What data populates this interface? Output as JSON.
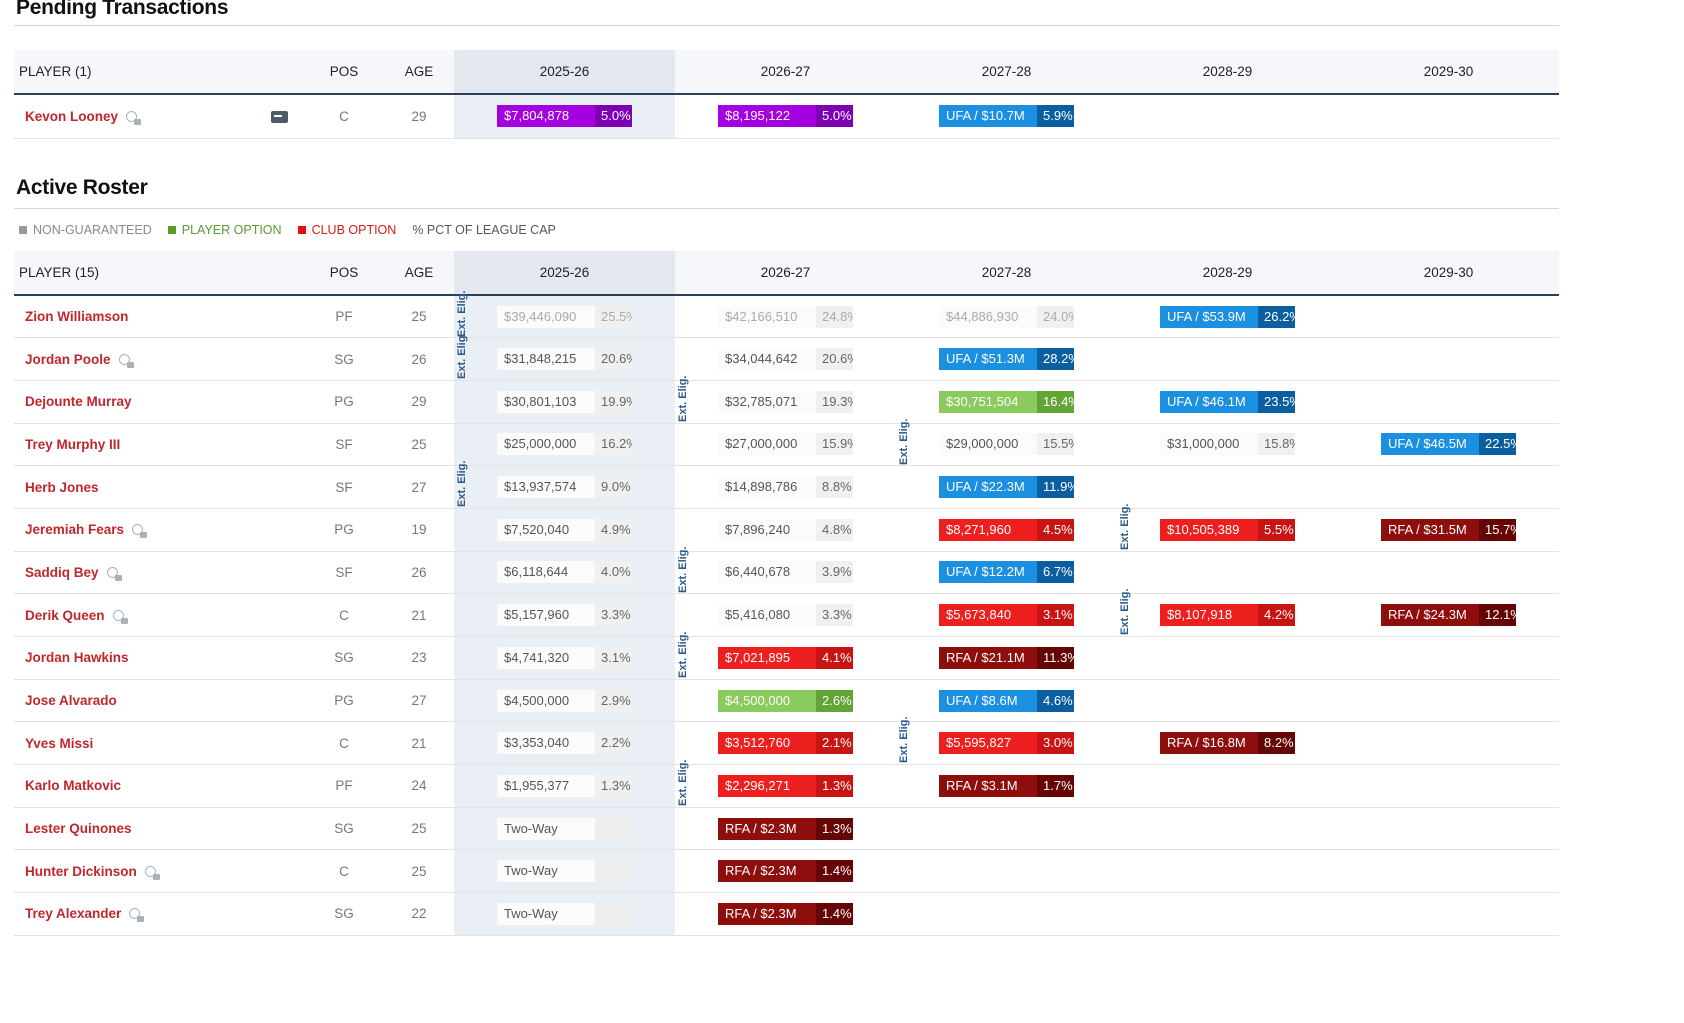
{
  "pending": {
    "title": "Pending Transactions",
    "headers": {
      "player": "PLAYER (1)",
      "pos": "POS",
      "age": "AGE",
      "years": [
        "2025-26",
        "2026-27",
        "2027-28",
        "2028-29",
        "2029-30"
      ]
    },
    "rows": [
      {
        "name": "Kevon Looney",
        "pos": "C",
        "age": "29",
        "y1": {
          "amt": "$7,804,878",
          "pct": "5.0%"
        },
        "y2": {
          "amt": "$8,195,122",
          "pct": "5.0%"
        },
        "y3": {
          "amt": "UFA / $10.7M",
          "pct": "5.9%"
        }
      }
    ]
  },
  "roster": {
    "title": "Active Roster",
    "legend": {
      "non_guaranteed": "NON-GUARANTEED",
      "player_option": "PLAYER OPTION",
      "club_option": "CLUB OPTION",
      "pct_cap": "% PCT OF LEAGUE CAP"
    },
    "headers": {
      "player": "PLAYER (15)",
      "pos": "POS",
      "age": "AGE",
      "years": [
        "2025-26",
        "2026-27",
        "2027-28",
        "2028-29",
        "2029-30"
      ]
    },
    "ext_label": "Ext. Elig.",
    "rows": [
      {
        "name": "Zion Williamson",
        "pos": "PF",
        "age": "25",
        "cells": [
          {
            "amt": "$39,446,090",
            "pct": "25.5%"
          },
          {
            "amt": "$42,166,510",
            "pct": "24.8%"
          },
          {
            "amt": "$44,886,930",
            "pct": "24.0%"
          },
          {
            "amt": "UFA / $53.9M",
            "pct": "26.2%"
          },
          null
        ]
      },
      {
        "name": "Jordan Poole",
        "pos": "SG",
        "age": "26",
        "cells": [
          {
            "amt": "$31,848,215",
            "pct": "20.6%"
          },
          {
            "amt": "$34,044,642",
            "pct": "20.6%"
          },
          {
            "amt": "UFA / $51.3M",
            "pct": "28.2%"
          },
          null,
          null
        ]
      },
      {
        "name": "Dejounte Murray",
        "pos": "PG",
        "age": "29",
        "cells": [
          {
            "amt": "$30,801,103",
            "pct": "19.9%"
          },
          {
            "amt": "$32,785,071",
            "pct": "19.3%"
          },
          {
            "amt": "$30,751,504",
            "pct": "16.4%"
          },
          {
            "amt": "UFA / $46.1M",
            "pct": "23.5%"
          },
          null
        ]
      },
      {
        "name": "Trey Murphy III",
        "pos": "SF",
        "age": "25",
        "cells": [
          {
            "amt": "$25,000,000",
            "pct": "16.2%"
          },
          {
            "amt": "$27,000,000",
            "pct": "15.9%"
          },
          {
            "amt": "$29,000,000",
            "pct": "15.5%"
          },
          {
            "amt": "$31,000,000",
            "pct": "15.8%"
          },
          {
            "amt": "UFA / $46.5M",
            "pct": "22.5%"
          }
        ]
      },
      {
        "name": "Herb Jones",
        "pos": "SF",
        "age": "27",
        "cells": [
          {
            "amt": "$13,937,574",
            "pct": "9.0%"
          },
          {
            "amt": "$14,898,786",
            "pct": "8.8%"
          },
          {
            "amt": "UFA / $22.3M",
            "pct": "11.9%"
          },
          null,
          null
        ]
      },
      {
        "name": "Jeremiah Fears",
        "pos": "PG",
        "age": "19",
        "cells": [
          {
            "amt": "$7,520,040",
            "pct": "4.9%"
          },
          {
            "amt": "$7,896,240",
            "pct": "4.8%"
          },
          {
            "amt": "$8,271,960",
            "pct": "4.5%"
          },
          {
            "amt": "$10,505,389",
            "pct": "5.5%"
          },
          {
            "amt": "RFA / $31.5M",
            "pct": "15.7%"
          }
        ]
      },
      {
        "name": "Saddiq Bey",
        "pos": "SF",
        "age": "26",
        "cells": [
          {
            "amt": "$6,118,644",
            "pct": "4.0%"
          },
          {
            "amt": "$6,440,678",
            "pct": "3.9%"
          },
          {
            "amt": "UFA / $12.2M",
            "pct": "6.7%"
          },
          null,
          null
        ]
      },
      {
        "name": "Derik Queen",
        "pos": "C",
        "age": "21",
        "cells": [
          {
            "amt": "$5,157,960",
            "pct": "3.3%"
          },
          {
            "amt": "$5,416,080",
            "pct": "3.3%"
          },
          {
            "amt": "$5,673,840",
            "pct": "3.1%"
          },
          {
            "amt": "$8,107,918",
            "pct": "4.2%"
          },
          {
            "amt": "RFA / $24.3M",
            "pct": "12.1%"
          }
        ]
      },
      {
        "name": "Jordan Hawkins",
        "pos": "SG",
        "age": "23",
        "cells": [
          {
            "amt": "$4,741,320",
            "pct": "3.1%"
          },
          {
            "amt": "$7,021,895",
            "pct": "4.1%"
          },
          {
            "amt": "RFA / $21.1M",
            "pct": "11.3%"
          },
          null,
          null
        ]
      },
      {
        "name": "Jose Alvarado",
        "pos": "PG",
        "age": "27",
        "cells": [
          {
            "amt": "$4,500,000",
            "pct": "2.9%"
          },
          {
            "amt": "$4,500,000",
            "pct": "2.6%"
          },
          {
            "amt": "UFA / $8.6M",
            "pct": "4.6%"
          },
          null,
          null
        ]
      },
      {
        "name": "Yves Missi",
        "pos": "C",
        "age": "21",
        "cells": [
          {
            "amt": "$3,353,040",
            "pct": "2.2%"
          },
          {
            "amt": "$3,512,760",
            "pct": "2.1%"
          },
          {
            "amt": "$5,595,827",
            "pct": "3.0%"
          },
          {
            "amt": "RFA / $16.8M",
            "pct": "8.2%"
          },
          null
        ]
      },
      {
        "name": "Karlo Matkovic",
        "pos": "PF",
        "age": "24",
        "cells": [
          {
            "amt": "$1,955,377",
            "pct": "1.3%"
          },
          {
            "amt": "$2,296,271",
            "pct": "1.3%"
          },
          {
            "amt": "RFA / $3.1M",
            "pct": "1.7%"
          },
          null,
          null
        ]
      },
      {
        "name": "Lester Quinones",
        "pos": "SG",
        "age": "25",
        "cells": [
          {
            "amt": "Two-Way",
            "pct": ""
          },
          {
            "amt": "RFA / $2.3M",
            "pct": "1.3%"
          },
          null,
          null,
          null
        ]
      },
      {
        "name": "Hunter Dickinson",
        "pos": "C",
        "age": "25",
        "cells": [
          {
            "amt": "Two-Way",
            "pct": ""
          },
          {
            "amt": "RFA / $2.3M",
            "pct": "1.4%"
          },
          null,
          null,
          null
        ]
      },
      {
        "name": "Trey Alexander",
        "pos": "SG",
        "age": "22",
        "cells": [
          {
            "amt": "Two-Way",
            "pct": ""
          },
          {
            "amt": "RFA / $2.3M",
            "pct": "1.4%"
          },
          null,
          null,
          null
        ]
      }
    ]
  }
}
